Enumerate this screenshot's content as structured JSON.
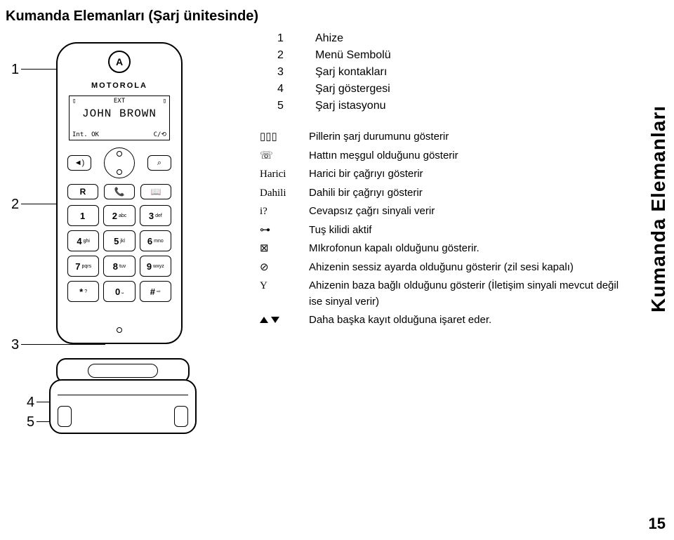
{
  "title": "Kumanda Elemanları (Şarj ünitesinde)",
  "side_title": "Kumanda Elemanları",
  "page_number": "15",
  "phone": {
    "logo": "A",
    "brand": "MOTOROLA",
    "display_name": "JOHN BROWN",
    "display_top_left": "▯",
    "display_top_mid": "EXT",
    "display_top_right": "▯",
    "display_bottom_left": "Int.   OK",
    "display_bottom_right": "C/⟲",
    "nav_left": "◄)",
    "nav_right": "⌕",
    "func_left": "R",
    "func_mid": "📞",
    "func_right": "📖",
    "keys": [
      {
        "num": "1",
        "sub": ""
      },
      {
        "num": "2",
        "sub": "abc"
      },
      {
        "num": "3",
        "sub": "def"
      },
      {
        "num": "4",
        "sub": "ghi"
      },
      {
        "num": "5",
        "sub": "jkl"
      },
      {
        "num": "6",
        "sub": "mno"
      },
      {
        "num": "7",
        "sub": "pqrs"
      },
      {
        "num": "8",
        "sub": "tuv"
      },
      {
        "num": "9",
        "sub": "wxyz"
      },
      {
        "num": "*",
        "sub": "?"
      },
      {
        "num": "0",
        "sub": "⎵"
      },
      {
        "num": "#",
        "sub": "⇨"
      }
    ]
  },
  "callouts": {
    "c1": "1",
    "c2": "2",
    "c3": "3",
    "c4": "4",
    "c5": "5"
  },
  "legend": [
    {
      "n": "1",
      "t": "Ahize"
    },
    {
      "n": "2",
      "t": "Menü Sembolü"
    },
    {
      "n": "3",
      "t": "Şarj kontakları"
    },
    {
      "n": "4",
      "t": "Şarj göstergesi"
    },
    {
      "n": "5",
      "t": "Şarj istasyonu"
    }
  ],
  "icons": [
    {
      "sym": "▯▯▯",
      "txt": "Pillerin şarj durumunu gösterir"
    },
    {
      "sym": "☏",
      "txt": "Hattın meşgul olduğunu gösterir"
    },
    {
      "sym": "Harici",
      "txt": "Harici bir çağrıyı gösterir"
    },
    {
      "sym": "Dahili",
      "txt": "Dahili bir çağrıyı gösterir"
    },
    {
      "sym": "i?",
      "txt": "Cevapsız çağrı sinyali verir"
    },
    {
      "sym": "⊶",
      "txt": "Tuş kilidi aktif"
    },
    {
      "sym": "⊠",
      "txt": "MIkrofonun kapalı olduğunu gösterir."
    },
    {
      "sym": "⊘",
      "txt": "Ahizenin sessiz ayarda olduğunu gösterir (zil sesi kapalı)"
    },
    {
      "sym": "Y",
      "txt": "Ahizenin baza bağlı olduğunu gösterir (İletişim sinyali mevcut değil ise sinyal verir)"
    },
    {
      "sym": "__ARROWS__",
      "txt": "Daha başka kayıt olduğuna işaret eder."
    }
  ]
}
